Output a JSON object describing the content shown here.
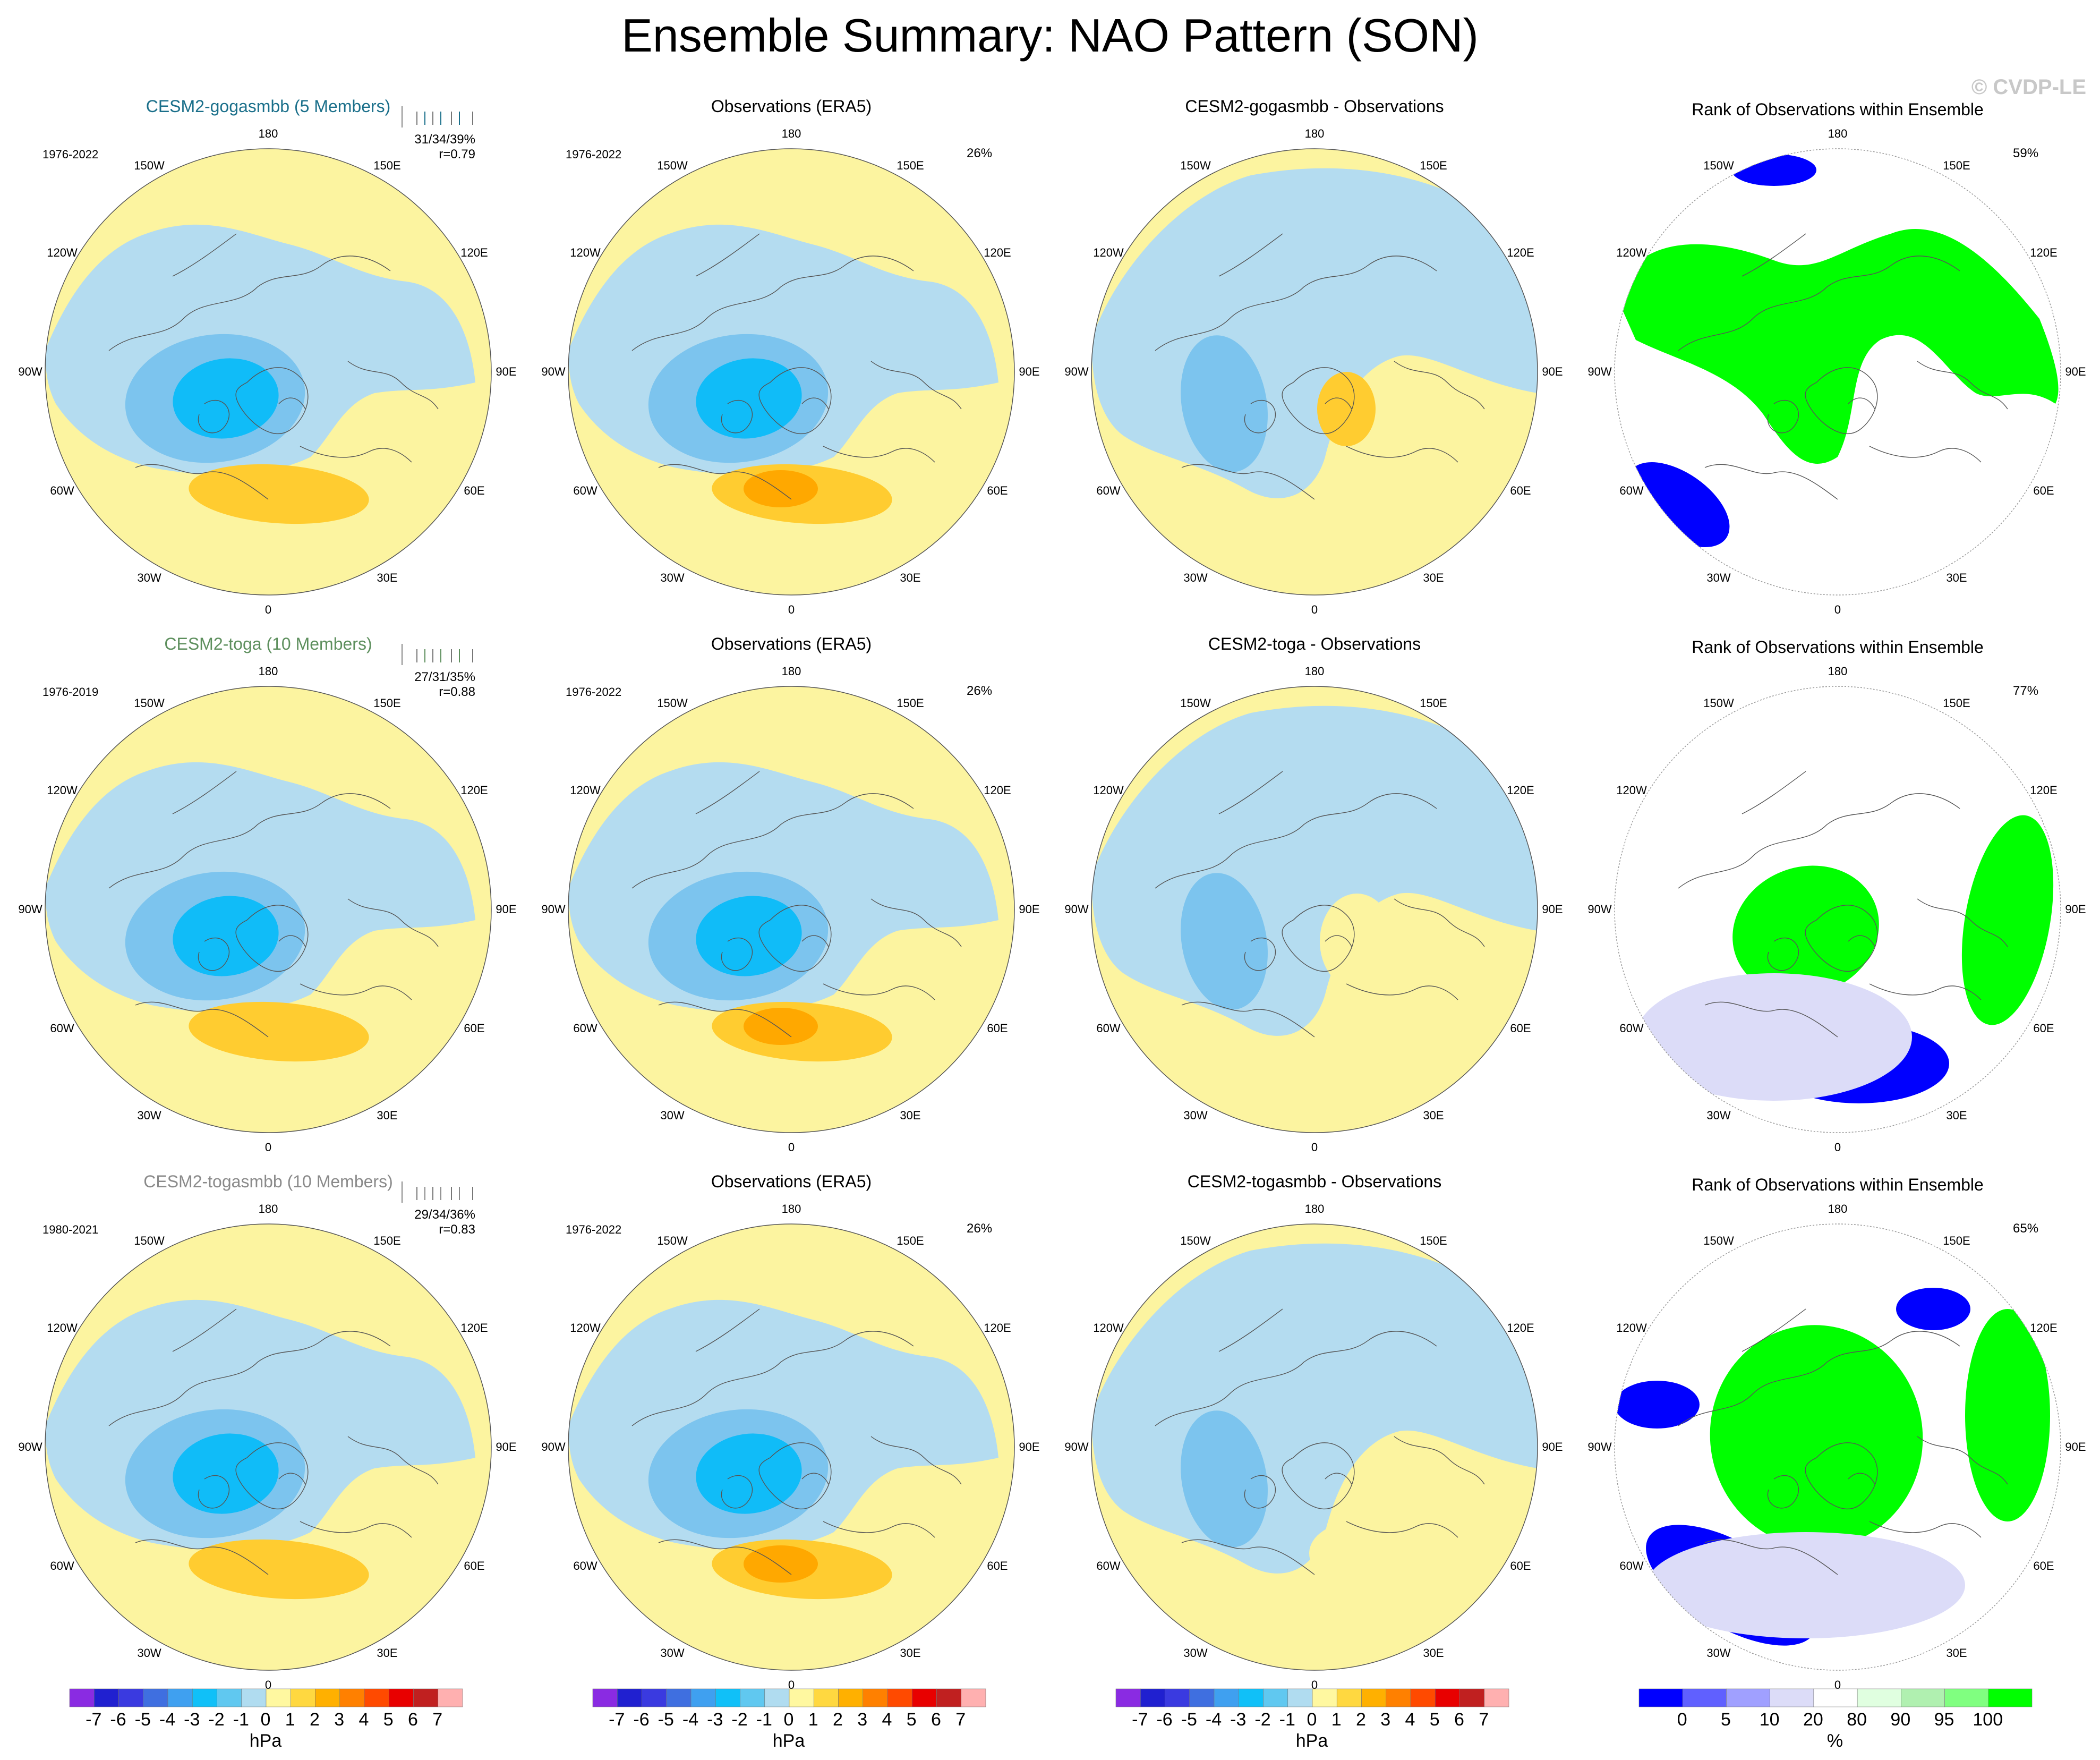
{
  "figure_title": "Ensemble Summary: NAO Pattern (SON)",
  "credit": "© CVDP-LE",
  "lon_labels": [
    "180",
    "150E",
    "120E",
    "90E",
    "60E",
    "30E",
    "0",
    "30W",
    "60W",
    "90W",
    "120W",
    "150W"
  ],
  "rows": [
    {
      "model_title": "CESM2-gogasmbb (5 Members)",
      "model_color": "#1a6f8a",
      "model_years": "1976-2022",
      "stats_line1": "31/34/39%",
      "stats_line2": "r=0.79",
      "obs_title": "Observations (ERA5)",
      "obs_years": "1976-2022",
      "obs_pct": "26%",
      "diff_title": "CESM2-gogasmbb - Observations",
      "rank_title": "Rank of Observations within Ensemble",
      "rank_pct": "59%"
    },
    {
      "model_title": "CESM2-toga (10 Members)",
      "model_color": "#5d8f5d",
      "model_years": "1976-2019",
      "stats_line1": "27/31/35%",
      "stats_line2": "r=0.88",
      "obs_title": "Observations (ERA5)",
      "obs_years": "1976-2022",
      "obs_pct": "26%",
      "diff_title": "CESM2-toga - Observations",
      "rank_title": "Rank of Observations within Ensemble",
      "rank_pct": "77%"
    },
    {
      "model_title": "CESM2-togasmbb (10 Members)",
      "model_color": "#8a8a8a",
      "model_years": "1980-2021",
      "stats_line1": "29/34/36%",
      "stats_line2": "r=0.83",
      "obs_title": "Observations (ERA5)",
      "obs_years": "1976-2022",
      "obs_pct": "26%",
      "diff_title": "CESM2-togasmbb - Observations",
      "rank_title": "Rank of Observations within Ensemble",
      "rank_pct": "65%"
    }
  ],
  "slp_colorbar": {
    "units": "hPa",
    "labels": [
      "-7",
      "-6",
      "-5",
      "-4",
      "-3",
      "-2",
      "-1",
      "0",
      "1",
      "2",
      "3",
      "4",
      "5",
      "6",
      "7"
    ],
    "colors": [
      "#8a2be2",
      "#2020d0",
      "#3a3ae0",
      "#3f6fe0",
      "#3fa0f0",
      "#10c0f8",
      "#60c8f0",
      "#b0dcf0",
      "#fff8a0",
      "#ffd840",
      "#ffb000",
      "#ff8000",
      "#ff4a00",
      "#e80000",
      "#c02020",
      "#ffb0b0"
    ]
  },
  "rank_colorbar": {
    "units": "%",
    "labels": [
      "0",
      "5",
      "10",
      "20",
      "80",
      "90",
      "95",
      "100"
    ],
    "colors": [
      "#0000ff",
      "#6060ff",
      "#a0a0ff",
      "#dcdcf8",
      "#ffffff",
      "#e0ffe0",
      "#b0f0b0",
      "#80ff80",
      "#00ff00"
    ]
  },
  "colors": {
    "pos_light": "#fcf4a0",
    "neg_light": "#b4dcf0",
    "neg_mid": "#7cc4ee",
    "neg_strong": "#10bcf8",
    "pos_mid": "#ffcc30",
    "pos_strong": "#ffa800",
    "rank_low": "#0000ff",
    "rank_low_light": "#dcdcf8",
    "rank_high": "#00ff00",
    "rank_high_light": "#e0ffe0"
  }
}
